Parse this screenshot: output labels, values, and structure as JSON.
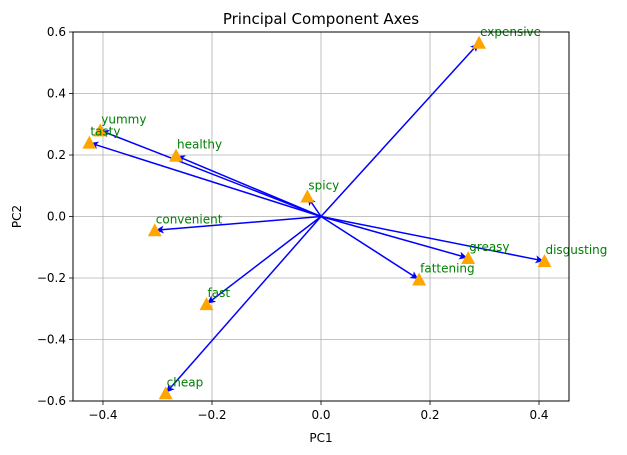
{
  "chart_data": {
    "type": "scatter",
    "title": "Principal Component Axes",
    "xlabel": "PC1",
    "ylabel": "PC2",
    "xlim": [
      -0.455,
      0.455
    ],
    "ylim": [
      -0.6,
      0.6
    ],
    "xticks": [
      -0.4,
      -0.2,
      0.0,
      0.2,
      0.4
    ],
    "xtick_labels": [
      "−0.4",
      "−0.2",
      "0.0",
      "0.2",
      "0.4"
    ],
    "yticks": [
      -0.6,
      -0.4,
      -0.2,
      0.0,
      0.2,
      0.4,
      0.6
    ],
    "ytick_labels": [
      "−0.6",
      "−0.4",
      "−0.2",
      "0.0",
      "0.2",
      "0.4",
      "0.6"
    ],
    "grid": true,
    "arrow_color": "#0000ff",
    "marker_color": "#ffa500",
    "label_color": "#008000",
    "points": [
      {
        "label": "yummy",
        "x": -0.405,
        "y": 0.28
      },
      {
        "label": "tasty",
        "x": -0.425,
        "y": 0.24
      },
      {
        "label": "healthy",
        "x": -0.266,
        "y": 0.198
      },
      {
        "label": "spicy",
        "x": -0.025,
        "y": 0.065
      },
      {
        "label": "convenient",
        "x": -0.305,
        "y": -0.045
      },
      {
        "label": "fast",
        "x": -0.21,
        "y": -0.285
      },
      {
        "label": "cheap",
        "x": -0.285,
        "y": -0.575
      },
      {
        "label": "expensive",
        "x": 0.29,
        "y": 0.565
      },
      {
        "label": "fattening",
        "x": 0.18,
        "y": -0.205
      },
      {
        "label": "greasy",
        "x": 0.27,
        "y": -0.135
      },
      {
        "label": "disgusting",
        "x": 0.41,
        "y": -0.145
      }
    ]
  }
}
